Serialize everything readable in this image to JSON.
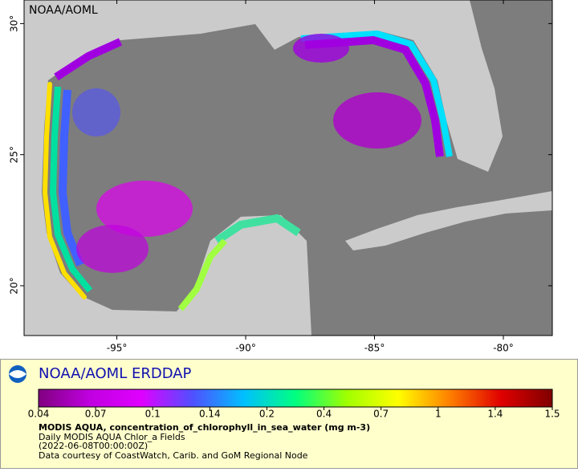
{
  "map": {
    "header": "NOAA/AOML",
    "xlim": [
      -98.6,
      -78.1
    ],
    "ylim": [
      18.1,
      30.9
    ],
    "xticks": [
      {
        "value": -95,
        "label": "-95°"
      },
      {
        "value": -90,
        "label": "-90°"
      },
      {
        "value": -85,
        "label": "-85°"
      },
      {
        "value": -80,
        "label": "-80°"
      }
    ],
    "yticks": [
      {
        "value": 20,
        "label": "20°"
      },
      {
        "value": 25,
        "label": "25°"
      },
      {
        "value": 30,
        "label": "30°"
      }
    ]
  },
  "legend": {
    "title": "NOAA/AOML ERDDAP",
    "colorbar": {
      "ticks": [
        0.04,
        0.07,
        0.1,
        0.14,
        0.2,
        0.4,
        0.7,
        1,
        1.4,
        1.5
      ],
      "colors": [
        "#800080",
        "#c000e0",
        "#e000ff",
        "#5050ff",
        "#00c0ff",
        "#00ff80",
        "#a0ff00",
        "#ffff00",
        "#ff8000",
        "#e00000",
        "#800000"
      ]
    },
    "lines": [
      "MODIS AQUA, concentration_of_chlorophyll_in_sea_water (mg m-3)",
      "Daily MODIS AQUA Chlor_a Fields",
      "(2022-06-08T00:00:00Z)",
      "Data courtesy of CoastWatch, Carib. and GoM Regional Node"
    ]
  }
}
